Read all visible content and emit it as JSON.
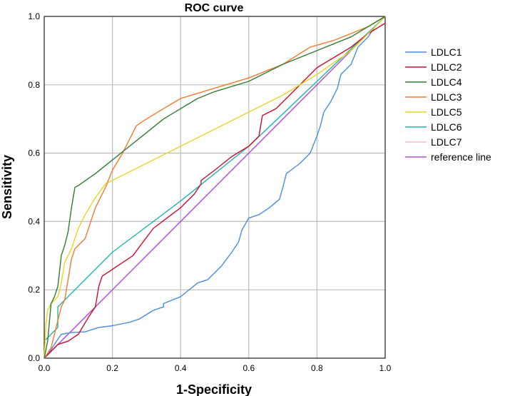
{
  "chart_data": {
    "type": "line",
    "title": "ROC curve",
    "xlabel": "1-Specificity",
    "ylabel": "Sensitivity",
    "xlim": [
      0.0,
      1.0
    ],
    "ylim": [
      0.0,
      1.0
    ],
    "xticks": [
      "0.0",
      "0.2",
      "0.4",
      "0.6",
      "0.8",
      "1.0"
    ],
    "yticks": [
      "0.0",
      "0.2",
      "0.4",
      "0.6",
      "0.8",
      "1.0"
    ],
    "grid": true,
    "legend_position": "right",
    "series": [
      {
        "name": "LDLC1",
        "color": "#4a8ddc",
        "x": [
          0,
          0.01,
          0.03,
          0.05,
          0.08,
          0.12,
          0.16,
          0.2,
          0.25,
          0.28,
          0.32,
          0.35,
          0.35,
          0.4,
          0.45,
          0.48,
          0.52,
          0.55,
          0.57,
          0.58,
          0.6,
          0.63,
          0.66,
          0.69,
          0.7,
          0.71,
          0.75,
          0.78,
          0.8,
          0.81,
          0.82,
          0.84,
          0.85,
          0.86,
          0.87,
          0.9,
          0.92,
          0.95,
          0.97,
          1.0
        ],
        "y": [
          0,
          0.01,
          0.04,
          0.07,
          0.075,
          0.077,
          0.09,
          0.095,
          0.105,
          0.115,
          0.14,
          0.15,
          0.16,
          0.18,
          0.22,
          0.23,
          0.27,
          0.31,
          0.34,
          0.375,
          0.41,
          0.42,
          0.44,
          0.465,
          0.5,
          0.54,
          0.57,
          0.6,
          0.65,
          0.68,
          0.72,
          0.75,
          0.77,
          0.79,
          0.83,
          0.86,
          0.91,
          0.94,
          0.97,
          1.0
        ]
      },
      {
        "name": "LDLC2",
        "color": "#c8102e",
        "x": [
          0,
          0.02,
          0.04,
          0.07,
          0.1,
          0.13,
          0.15,
          0.16,
          0.17,
          0.2,
          0.23,
          0.26,
          0.29,
          0.32,
          0.36,
          0.4,
          0.44,
          0.46,
          0.46,
          0.5,
          0.55,
          0.6,
          0.63,
          0.64,
          0.68,
          0.72,
          0.76,
          0.8,
          0.85,
          0.9,
          0.95,
          1.0
        ],
        "y": [
          0,
          0.02,
          0.04,
          0.05,
          0.07,
          0.12,
          0.15,
          0.21,
          0.24,
          0.26,
          0.28,
          0.3,
          0.34,
          0.38,
          0.41,
          0.44,
          0.48,
          0.51,
          0.52,
          0.55,
          0.59,
          0.62,
          0.65,
          0.71,
          0.73,
          0.77,
          0.81,
          0.85,
          0.88,
          0.91,
          0.95,
          0.98
        ]
      },
      {
        "name": "LDLC4",
        "color": "#2e7d32",
        "x": [
          0,
          0.01,
          0.02,
          0.03,
          0.04,
          0.05,
          0.06,
          0.07,
          0.08,
          0.09,
          0.1,
          0.15,
          0.2,
          0.25,
          0.3,
          0.35,
          0.4,
          0.45,
          0.5,
          0.6,
          0.7,
          0.8,
          0.9,
          1.0
        ],
        "y": [
          0,
          0.05,
          0.16,
          0.18,
          0.21,
          0.3,
          0.33,
          0.37,
          0.44,
          0.5,
          0.505,
          0.54,
          0.58,
          0.62,
          0.66,
          0.7,
          0.73,
          0.76,
          0.78,
          0.81,
          0.86,
          0.9,
          0.94,
          1.0
        ]
      },
      {
        "name": "LDLC3",
        "color": "#f4792e",
        "x": [
          0,
          0.02,
          0.03,
          0.05,
          0.06,
          0.07,
          0.08,
          0.09,
          0.1,
          0.12,
          0.13,
          0.15,
          0.18,
          0.2,
          0.23,
          0.25,
          0.27,
          0.3,
          0.35,
          0.4,
          0.5,
          0.6,
          0.7,
          0.78,
          0.85,
          0.9,
          0.95,
          1.0
        ],
        "y": [
          0,
          0.03,
          0.07,
          0.15,
          0.17,
          0.23,
          0.29,
          0.32,
          0.33,
          0.35,
          0.38,
          0.44,
          0.5,
          0.55,
          0.6,
          0.64,
          0.68,
          0.7,
          0.73,
          0.76,
          0.79,
          0.82,
          0.86,
          0.91,
          0.93,
          0.95,
          0.97,
          1.0
        ]
      },
      {
        "name": "LDLC5",
        "color": "#e8d51e",
        "x": [
          0,
          0.005,
          0.01,
          0.02,
          0.03,
          0.04,
          0.05,
          0.06,
          0.08,
          0.1,
          0.12,
          0.15,
          0.18,
          0.2,
          0.3,
          0.4,
          0.5,
          0.6,
          0.7,
          0.8,
          0.9,
          1.0
        ],
        "y": [
          0,
          0.1,
          0.14,
          0.16,
          0.17,
          0.18,
          0.22,
          0.28,
          0.32,
          0.38,
          0.42,
          0.47,
          0.51,
          0.52,
          0.57,
          0.62,
          0.67,
          0.72,
          0.77,
          0.83,
          0.9,
          1.0
        ]
      },
      {
        "name": "LDLC6",
        "color": "#1fb5ad",
        "x": [
          0,
          0.04,
          0.04,
          0.2,
          0.4,
          0.6,
          0.8,
          1.0
        ],
        "y": [
          0.05,
          0.09,
          0.15,
          0.31,
          0.46,
          0.62,
          0.81,
          1.0
        ]
      },
      {
        "name": "LDLC7",
        "color": "#f2b8d6",
        "x": [
          0,
          1.0
        ],
        "y": [
          0,
          1.0
        ]
      },
      {
        "name": "reference line",
        "color": "#b04fd9",
        "x": [
          0,
          1.0
        ],
        "y": [
          0,
          1.0
        ]
      }
    ]
  }
}
